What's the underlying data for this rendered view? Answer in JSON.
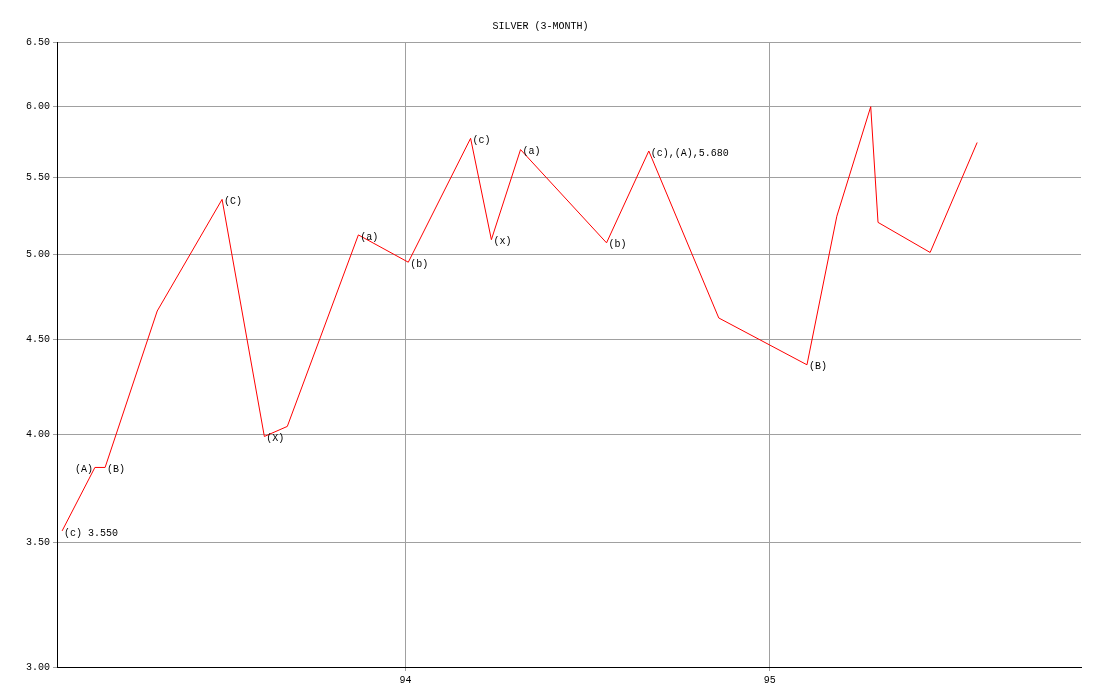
{
  "chart_data": {
    "type": "line",
    "title": "SILVER (3-MONTH)",
    "x": [
      93.058,
      93.148,
      93.176,
      93.319,
      93.497,
      93.613,
      93.676,
      93.871,
      94.008,
      94.179,
      94.236,
      94.316,
      94.552,
      94.668,
      94.86,
      95.102,
      95.184,
      95.277,
      95.297,
      95.44,
      95.569
    ],
    "series": [
      {
        "color": "#ff0000",
        "values": [
          3.55,
          3.84,
          3.84,
          4.66,
          5.35,
          3.99,
          4.04,
          5.12,
          4.95,
          5.77,
          5.09,
          5.69,
          5.07,
          5.68,
          4.62,
          4.36,
          5.24,
          6.0,
          5.2,
          5.01,
          5.74
        ]
      }
    ],
    "xlim": [
      93.044,
      95.854
    ],
    "xticks": [
      94,
      95
    ],
    "ylim": [
      3,
      6.5
    ],
    "yticks": [
      {
        "value": 3,
        "label": "3.00"
      },
      {
        "value": 3.5,
        "label": "3.50"
      },
      {
        "value": 4,
        "label": "4.00"
      },
      {
        "value": 4.5,
        "label": "4.50"
      },
      {
        "value": 5,
        "label": "5.00"
      },
      {
        "value": 5.5,
        "label": "5.50"
      },
      {
        "value": 6,
        "label": "6.00"
      },
      {
        "value": 6.5,
        "label": "6.50"
      }
    ],
    "log": "y",
    "grid": true,
    "legend": false,
    "marker": "none",
    "line_style": "solid",
    "annotations": [
      {
        "text": "(c) 3.550",
        "x": 93.058,
        "y": 3.55
      },
      {
        "text": "(A)",
        "x": 93.148,
        "y": 3.84
      },
      {
        "text": "(B)",
        "x": 93.176,
        "y": 3.84
      },
      {
        "text": "(C)",
        "x": 93.497,
        "y": 5.35
      },
      {
        "text": "(X)",
        "x": 93.613,
        "y": 3.99
      },
      {
        "text": "(a)",
        "x": 93.871,
        "y": 5.12
      },
      {
        "text": "(b)",
        "x": 94.008,
        "y": 4.95
      },
      {
        "text": "(c)",
        "x": 94.179,
        "y": 5.77
      },
      {
        "text": "(x)",
        "x": 94.236,
        "y": 5.09
      },
      {
        "text": "(a)",
        "x": 94.316,
        "y": 5.69
      },
      {
        "text": "(b)",
        "x": 94.552,
        "y": 5.07
      },
      {
        "text": "(c),(A),5.680",
        "x": 94.668,
        "y": 5.68
      },
      {
        "text": "(B)",
        "x": 95.102,
        "y": 4.36
      }
    ]
  }
}
